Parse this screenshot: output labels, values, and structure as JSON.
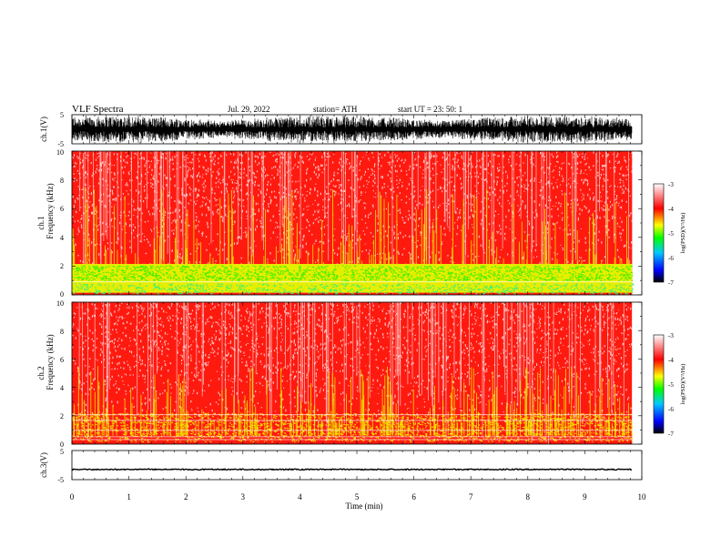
{
  "header": {
    "title": "VLF  Spectra",
    "date": "Jul.  29,  2022",
    "station": "station= ATH",
    "start": "start  UT  =    23: 50: 1"
  },
  "colors": {
    "waveform": "#000000",
    "axes": "#000000",
    "background": "#ffffff",
    "colormap": [
      "#000000",
      "#0000ff",
      "#00c8ff",
      "#00ff00",
      "#ffff00",
      "#ff0000",
      "#ffffff"
    ]
  },
  "chart_data": [
    {
      "type": "line",
      "panel": "ch1-waveform",
      "ylabel": "ch.1(V)",
      "ylim": [
        -5,
        5
      ],
      "yticks": [
        "5",
        "-5"
      ],
      "xlim": [
        0,
        10
      ],
      "trace_amplitude": 5,
      "trace_color": "#000000"
    },
    {
      "type": "heatmap",
      "panel": "ch1-spectrogram",
      "ylabel_line1": "ch.1",
      "ylabel_line2": "Frequency  (kHz)",
      "ylim": [
        0,
        10
      ],
      "yticks": [
        "0",
        "2",
        "4",
        "6",
        "8",
        "10"
      ],
      "xlim": [
        0,
        10
      ],
      "data_end_min": 9.83,
      "colorbar": {
        "label": "log(PSD)(V²/Hz)",
        "range": [
          -7,
          -3
        ],
        "ticks": [
          "-3",
          "-4",
          "-5",
          "-6",
          "-7"
        ]
      }
    },
    {
      "type": "heatmap",
      "panel": "ch2-spectrogram",
      "ylabel_line1": "ch.2",
      "ylabel_line2": "Frequency  (kHz)",
      "ylim": [
        0,
        10
      ],
      "yticks": [
        "0",
        "2",
        "4",
        "6",
        "8",
        "10"
      ],
      "xlim": [
        0,
        10
      ],
      "data_end_min": 9.83,
      "colorbar": {
        "label": "log(PSD)(V²/Hz)",
        "range": [
          -7,
          -3
        ],
        "ticks": [
          "-3",
          "-4",
          "-5",
          "-6",
          "-7"
        ]
      }
    },
    {
      "type": "line",
      "panel": "ch3-waveform",
      "ylabel": "ch.3(V)",
      "ylim": [
        -5,
        5
      ],
      "yticks": [
        "5",
        "-5"
      ],
      "xlim": [
        0,
        10
      ],
      "trace_level": -1.5,
      "trace_color": "#000000"
    }
  ],
  "xaxis": {
    "label": "Time  (min)",
    "ticks": [
      "0",
      "1",
      "2",
      "3",
      "4",
      "5",
      "6",
      "7",
      "8",
      "9",
      "10"
    ]
  }
}
